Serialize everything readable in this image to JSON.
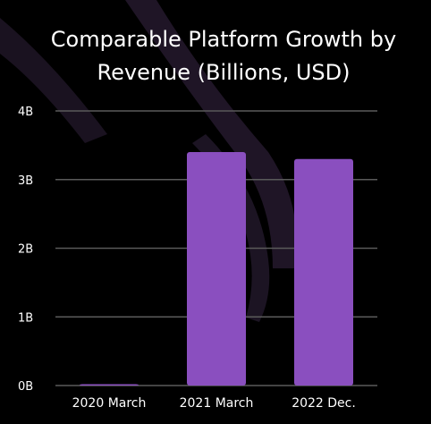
{
  "chart_data": {
    "type": "bar",
    "title": [
      "Comparable Platform Growth  by",
      "Revenue (Billions, USD)"
    ],
    "categories": [
      "2020 March",
      "2021 March",
      "2022 Dec."
    ],
    "values": [
      0,
      3.4,
      3.3
    ],
    "ylim": [
      0,
      4
    ],
    "yticks": [
      0,
      1,
      2,
      3,
      4
    ],
    "ytick_labels": [
      "0B",
      "1B",
      "2B",
      "3B",
      "4B"
    ],
    "grid": true,
    "colors": {
      "bar": "#8a4fbf",
      "background": "#000000",
      "decor": "#1f1526"
    }
  }
}
